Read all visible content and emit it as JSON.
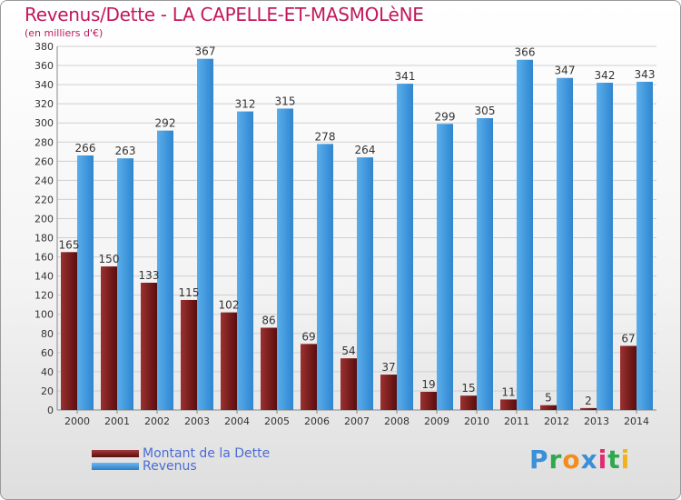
{
  "chart_data": {
    "type": "bar",
    "title": "Revenus/Dette - LA CAPELLE-ET-MASMOLèNE",
    "subtitle": "(en milliers d'€)",
    "categories": [
      "2000",
      "2001",
      "2002",
      "2003",
      "2004",
      "2005",
      "2006",
      "2007",
      "2008",
      "2009",
      "2010",
      "2011",
      "2012",
      "2013",
      "2014"
    ],
    "series": [
      {
        "name": "Montant de la Dette",
        "color": "#7a1a1a",
        "values": [
          165,
          150,
          133,
          115,
          102,
          86,
          69,
          54,
          37,
          19,
          15,
          11,
          5,
          2,
          67
        ]
      },
      {
        "name": "Revenus",
        "color": "#3a95dc",
        "values": [
          266,
          263,
          292,
          367,
          312,
          315,
          278,
          264,
          341,
          299,
          305,
          366,
          347,
          342,
          343
        ]
      }
    ],
    "ylim": [
      0,
      380
    ],
    "yticks": [
      0,
      20,
      40,
      60,
      80,
      100,
      120,
      140,
      160,
      180,
      200,
      220,
      240,
      260,
      280,
      300,
      320,
      340,
      360,
      380
    ],
    "grid": true,
    "legend_position": "bottom-left"
  },
  "logo": {
    "text": "Proxiti",
    "letters": [
      {
        "ch": "P",
        "color": "#3a8fd9"
      },
      {
        "ch": "r",
        "color": "#2fa84f"
      },
      {
        "ch": "o",
        "color": "#f28c1c"
      },
      {
        "ch": "x",
        "color": "#3a8fd9"
      },
      {
        "ch": "i",
        "color": "#e02b6f"
      },
      {
        "ch": "t",
        "color": "#2fa84f"
      },
      {
        "ch": "i",
        "color": "#f2b21c"
      }
    ]
  }
}
